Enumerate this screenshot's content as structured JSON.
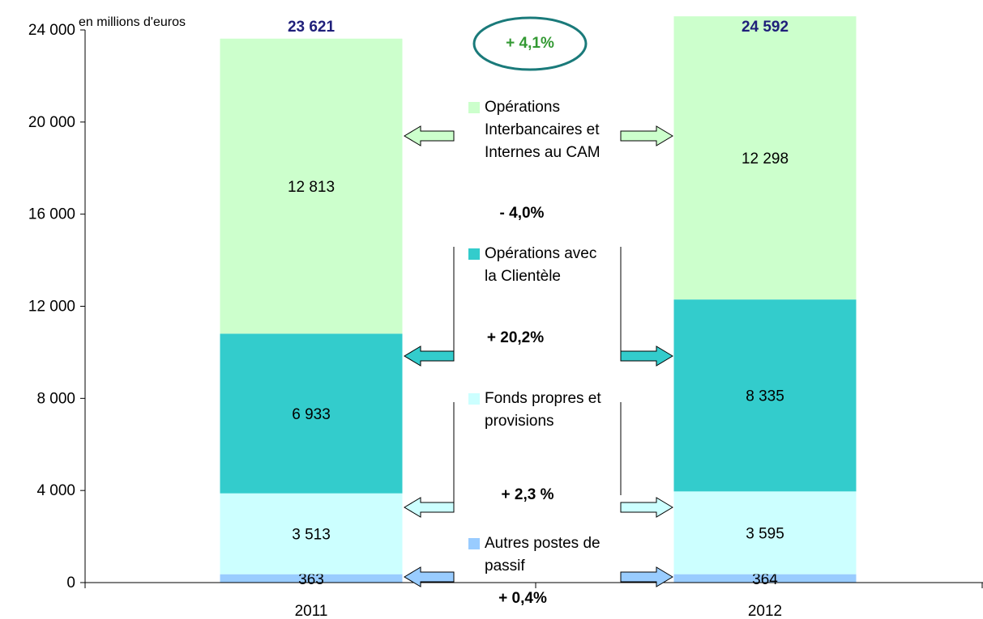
{
  "chart_data": {
    "type": "stacked_bar",
    "unit_label": "en millions d'euros",
    "categories": [
      "2011",
      "2012"
    ],
    "series": [
      {
        "name": "Autres postes de passif",
        "color": "#99ccff",
        "values": [
          363,
          364
        ],
        "value_labels": [
          "363",
          "364"
        ]
      },
      {
        "name": "Fonds propres et provisions",
        "color": "#ccffff",
        "values": [
          3513,
          3595
        ],
        "value_labels": [
          "3 513",
          "3 595"
        ]
      },
      {
        "name": "Opérations avec la Clientèle",
        "color": "#33cccc",
        "values": [
          6933,
          8335
        ],
        "value_labels": [
          "6 933",
          "8 335"
        ]
      },
      {
        "name": "Opérations Interbancaires et Internes au CAM",
        "color": "#ccffcc",
        "values": [
          12813,
          12298
        ],
        "value_labels": [
          "12 813",
          "12 298"
        ]
      }
    ],
    "totals": [
      23621,
      24592
    ],
    "total_labels": [
      "23 621",
      "24 592"
    ],
    "annotations": [
      "+ 4,1%",
      "- 4,0%",
      "+ 20,2%",
      "+ 2,3 %",
      "+ 0,4%"
    ],
    "ylim": [
      0,
      24000
    ],
    "yticks": [
      0,
      {
        "value": 4000,
        "label": "4 000"
      },
      {
        "value": 8000,
        "label": "8 000"
      },
      {
        "value": 12000,
        "label": "12 000"
      },
      {
        "value": 16000,
        "label": "16 000"
      },
      {
        "value": 20000,
        "label": "20 000"
      },
      {
        "value": 24000,
        "label": "24 000"
      }
    ]
  }
}
